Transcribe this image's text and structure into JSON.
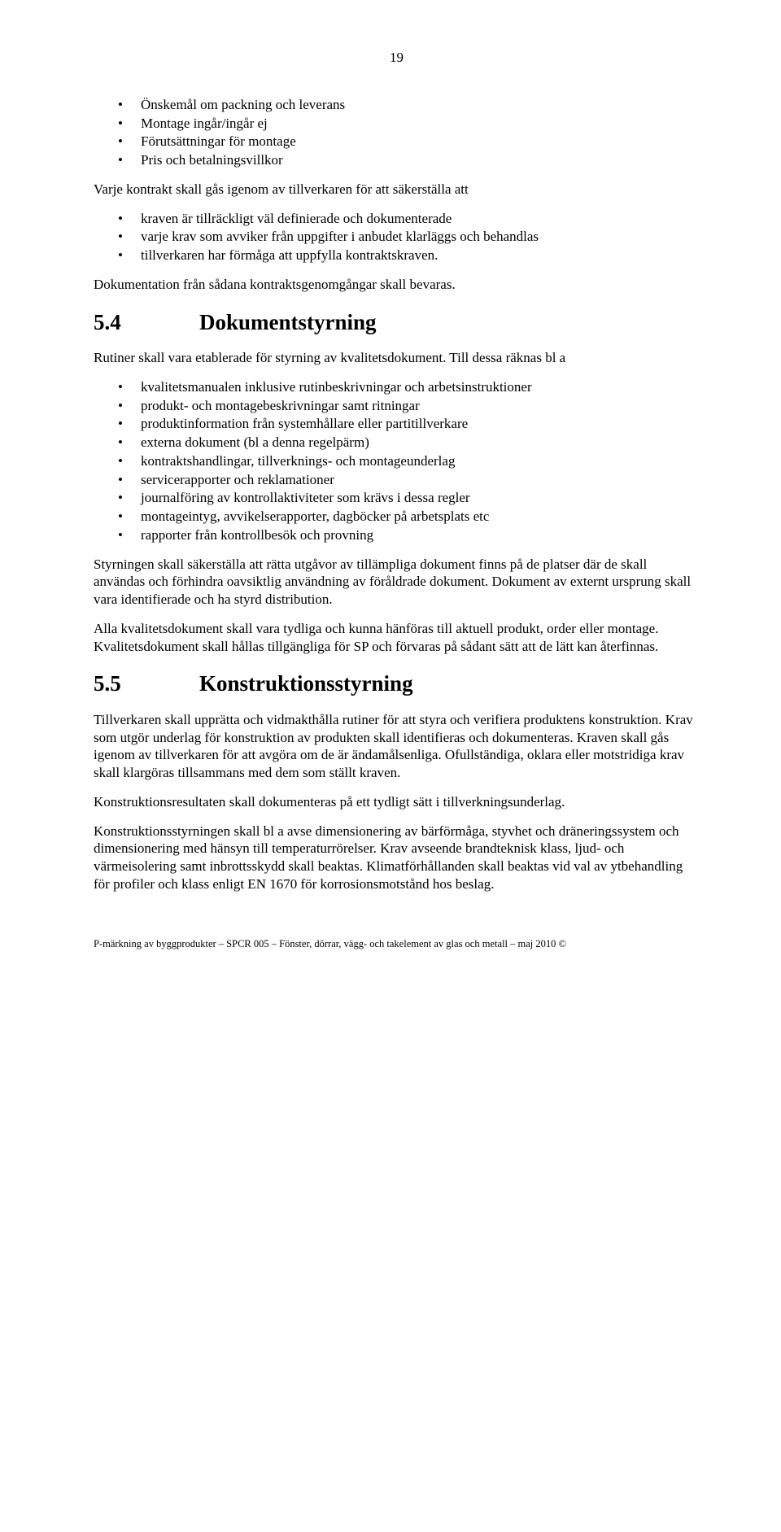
{
  "page_number": "19",
  "lists": {
    "l1": [
      "Önskemål om packning och leverans",
      "Montage ingår/ingår ej",
      "Förutsättningar för montage",
      "Pris och betalningsvillkor"
    ],
    "l2": [
      "kraven är tillräckligt väl definierade och dokumenterade",
      "varje krav som avviker från uppgifter i anbudet klarläggs och behandlas",
      "tillverkaren har förmåga att uppfylla kontraktskraven."
    ],
    "l3": [
      "kvalitetsmanualen inklusive rutinbeskrivningar och arbetsinstruktioner",
      "produkt- och montagebeskrivningar samt ritningar",
      "produktinformation från systemhållare eller partitillverkare",
      "externa dokument (bl a denna regelpärm)",
      "kontraktshandlingar, tillverknings- och montageunderlag",
      "servicerapporter och reklamationer",
      "journalföring av kontrollaktiviteter som krävs i dessa regler",
      "montageintyg, avvikelserapporter, dagböcker på arbetsplats etc",
      "rapporter från kontrollbesök och provning"
    ]
  },
  "paragraphs": {
    "p1": "Varje kontrakt skall gås igenom av tillverkaren för att säkerställa att",
    "p2": "Dokumentation från sådana kontraktsgenomgångar skall bevaras.",
    "p3": "Rutiner skall vara etablerade för styrning av kvalitetsdokument. Till dessa räknas bl a",
    "p4": "Styrningen skall säkerställa att rätta utgåvor av tillämpliga dokument finns på de platser där de skall användas och förhindra oavsiktlig användning av föråldrade dokument. Dokument av externt ursprung skall vara identifierade och ha styrd distribution.",
    "p5": "Alla kvalitetsdokument skall vara tydliga och kunna hänföras till aktuell produkt, order eller montage. Kvalitetsdokument skall hållas tillgängliga för SP och förvaras på sådant sätt att de lätt kan återfinnas.",
    "p6": "Tillverkaren skall upprätta och vidmakthålla rutiner för att styra och verifiera produktens konstruktion. Krav som utgör underlag för konstruktion av produkten skall identifieras och dokumenteras. Kraven skall gås igenom av tillverkaren för att avgöra om de är ändamålsenliga. Ofullständiga, oklara eller motstridiga krav skall klargöras tillsammans med dem som ställt kraven.",
    "p7": "Konstruktionsresultaten skall dokumenteras på ett tydligt sätt i tillverkningsunderlag.",
    "p8": "Konstruktionsstyrningen skall bl a avse dimensionering av bärförmåga, styvhet och dräneringssystem och dimensionering med hänsyn till temperaturrörelser. Krav avseende brandteknisk klass, ljud- och värmeisolering samt inbrottsskydd skall beaktas. Klimatförhållanden skall beaktas vid val av ytbehandling för profiler och klass enligt EN 1670 för korrosionsmotstånd hos beslag."
  },
  "headings": {
    "h1": {
      "num": "5.4",
      "title": "Dokumentstyrning"
    },
    "h2": {
      "num": "5.5",
      "title": "Konstruktionsstyrning"
    }
  },
  "footer": "P-märkning av byggprodukter – SPCR 005 – Fönster, dörrar, vägg- och takelement av glas och metall – maj 2010 ©"
}
